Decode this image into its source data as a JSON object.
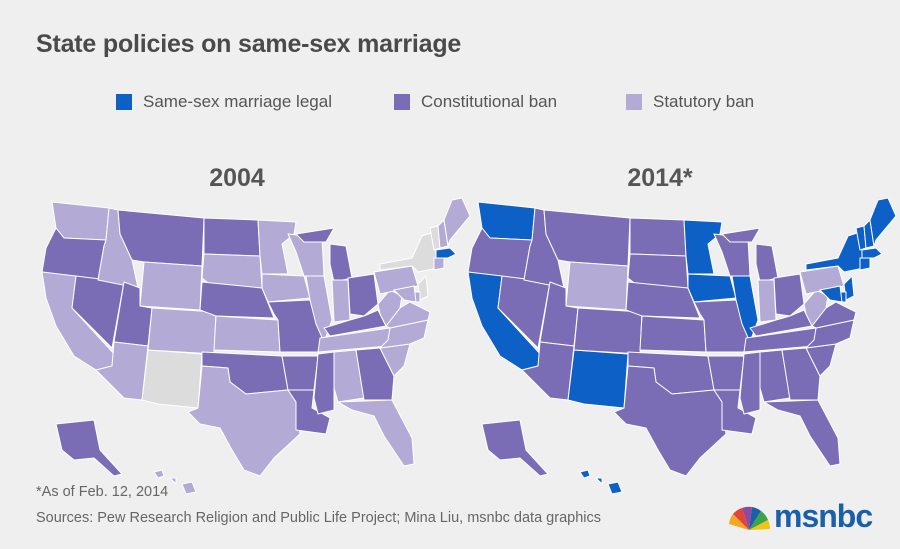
{
  "title": "State policies on same-sex marriage",
  "legend": [
    {
      "label": "Same-sex marriage legal",
      "color": "#0c60c6"
    },
    {
      "label": "Constitutional ban",
      "color": "#7b6db5"
    },
    {
      "label": "Statutory ban",
      "color": "#b3abd6"
    }
  ],
  "no_policy_color": "#dcdcdc",
  "maps": [
    {
      "year": "2004",
      "states": {
        "WA": "statutory",
        "OR": "constitutional",
        "CA": "statutory",
        "NV": "constitutional",
        "ID": "statutory",
        "MT": "constitutional",
        "WY": "statutory",
        "UT": "constitutional",
        "AZ": "statutory",
        "NM": "none",
        "CO": "statutory",
        "ND": "constitutional",
        "SD": "statutory",
        "NE": "constitutional",
        "KS": "statutory",
        "OK": "constitutional",
        "TX": "statutory",
        "MN": "statutory",
        "IA": "statutory",
        "MO": "constitutional",
        "AR": "constitutional",
        "LA": "constitutional",
        "WI": "statutory",
        "IL": "statutory",
        "MI": "constitutional",
        "IN": "statutory",
        "OH": "constitutional",
        "KY": "constitutional",
        "TN": "statutory",
        "MS": "constitutional",
        "AL": "statutory",
        "GA": "constitutional",
        "FL": "statutory",
        "SC": "statutory",
        "NC": "statutory",
        "VA": "statutory",
        "WV": "statutory",
        "PA": "statutory",
        "NY": "none",
        "VT": "none",
        "NH": "statutory",
        "ME": "statutory",
        "MA": "legal",
        "CT": "statutory",
        "NJ": "none",
        "DE": "statutory",
        "MD": "statutory",
        "AK": "constitutional",
        "HI": "statutory"
      }
    },
    {
      "year": "2014*",
      "states": {
        "WA": "legal",
        "OR": "constitutional",
        "CA": "legal",
        "NV": "constitutional",
        "ID": "constitutional",
        "MT": "constitutional",
        "WY": "statutory",
        "UT": "constitutional",
        "AZ": "constitutional",
        "NM": "legal",
        "CO": "constitutional",
        "ND": "constitutional",
        "SD": "constitutional",
        "NE": "constitutional",
        "KS": "constitutional",
        "OK": "constitutional",
        "TX": "constitutional",
        "MN": "legal",
        "IA": "legal",
        "MO": "constitutional",
        "AR": "constitutional",
        "LA": "constitutional",
        "WI": "constitutional",
        "IL": "legal",
        "MI": "constitutional",
        "IN": "statutory",
        "OH": "constitutional",
        "KY": "constitutional",
        "TN": "constitutional",
        "MS": "constitutional",
        "AL": "constitutional",
        "GA": "constitutional",
        "FL": "constitutional",
        "SC": "constitutional",
        "NC": "constitutional",
        "VA": "constitutional",
        "WV": "statutory",
        "PA": "statutory",
        "NY": "legal",
        "VT": "legal",
        "NH": "legal",
        "ME": "legal",
        "MA": "legal",
        "CT": "legal",
        "NJ": "legal",
        "DE": "legal",
        "MD": "legal",
        "AK": "constitutional",
        "HI": "legal"
      }
    }
  ],
  "footnote": "*As of Feb. 12, 2014",
  "sources": "Sources: Pew Research Religion and Public Life Project; Mina Liu, msnbc data graphics",
  "logo_text": "msnbc"
}
